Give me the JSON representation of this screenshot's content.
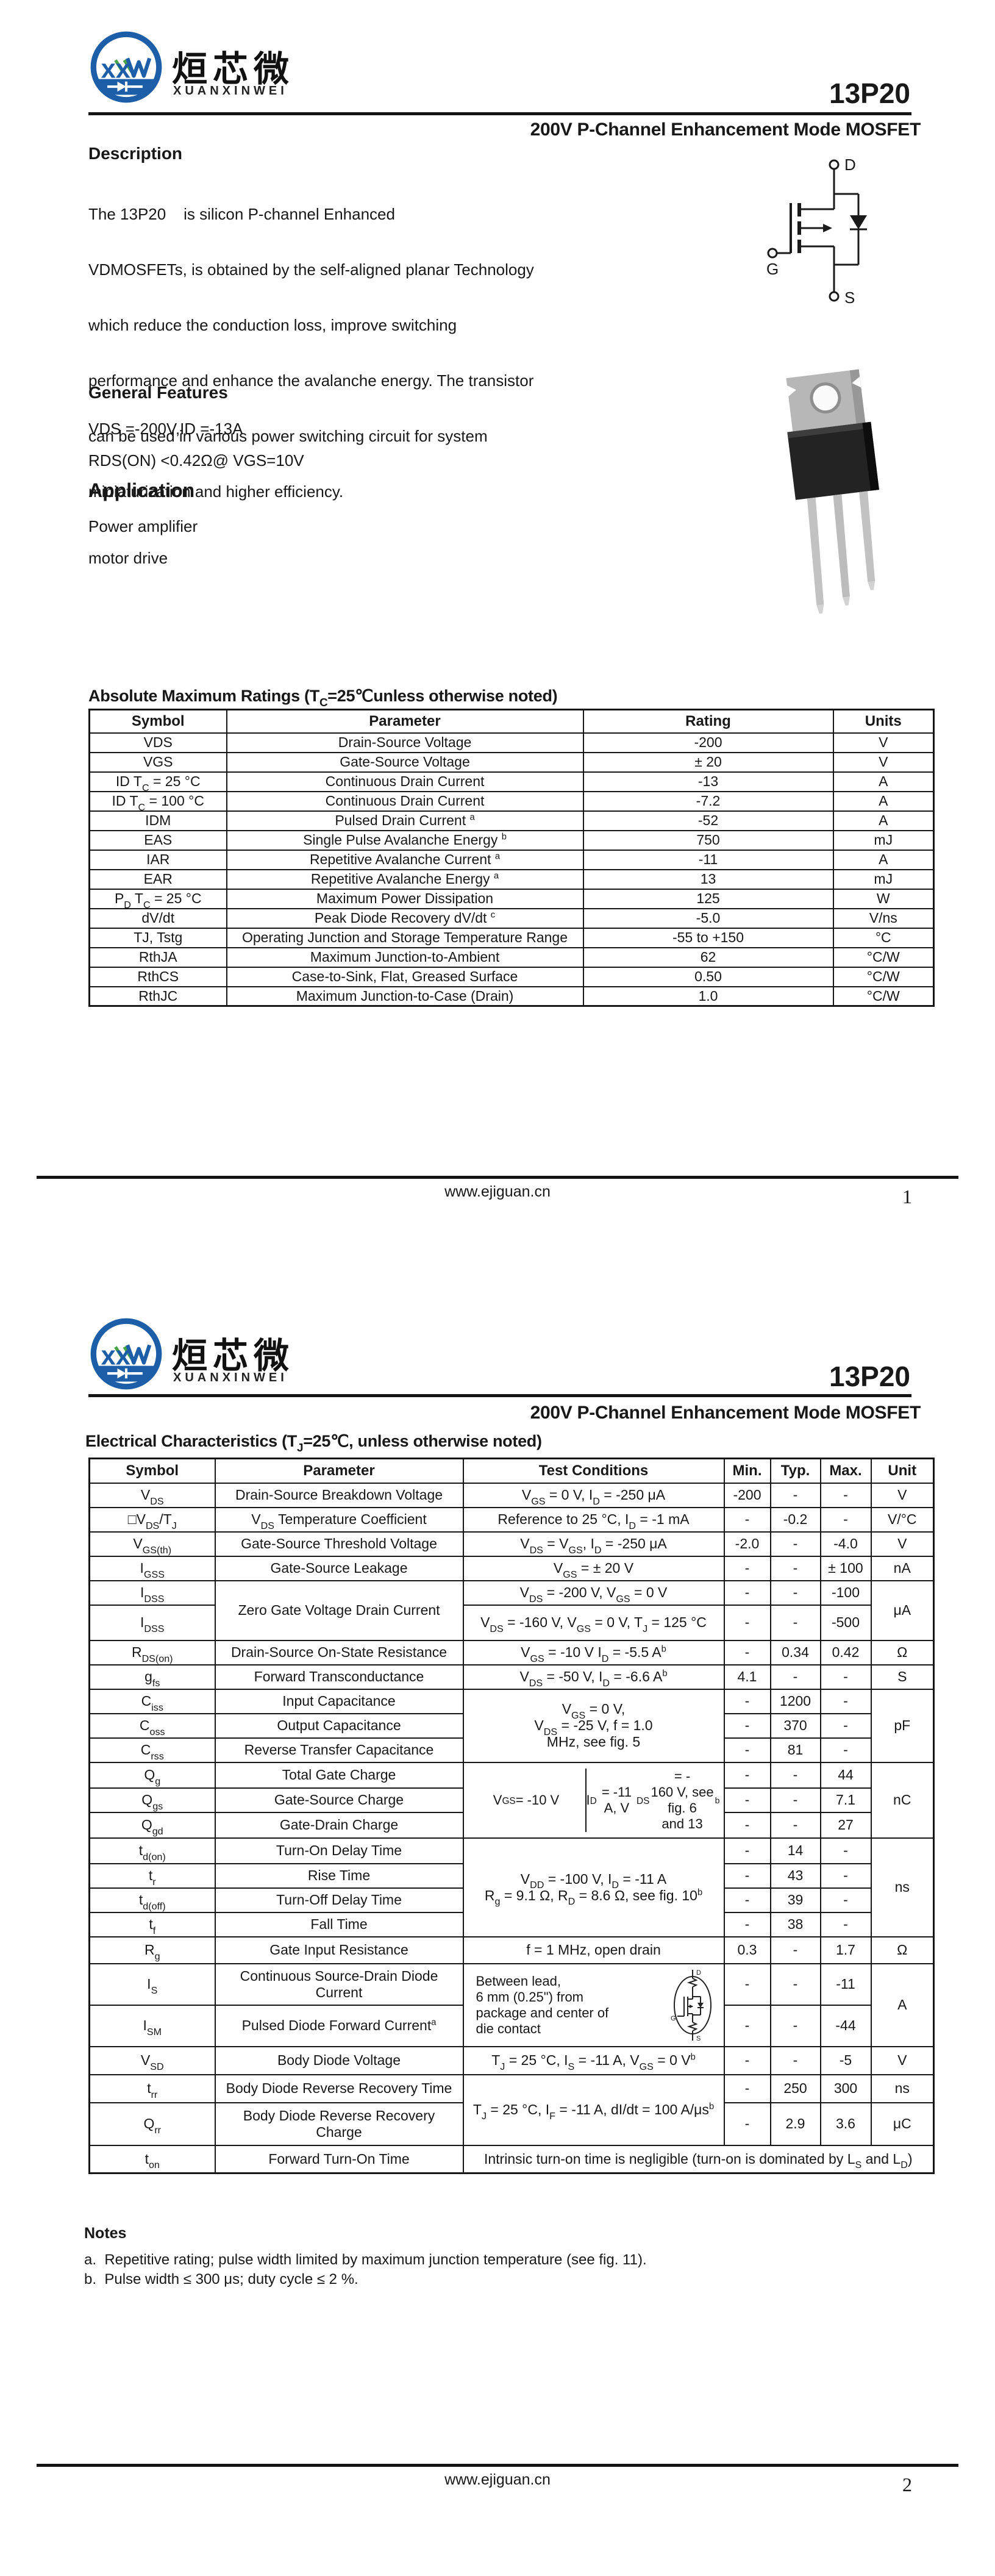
{
  "doc": {
    "brand": {
      "cn": "烜芯微",
      "en": "XUANXINWEI",
      "logo_blue": "#1c5ea8",
      "logo_green": "#46a447"
    },
    "part": "13P20",
    "subtitle": "200V P-Channel Enhancement Mode MOSFET",
    "terminals": {
      "d": "D",
      "g": "G",
      "s": "S"
    },
    "footer_url": "www.ejiguan.cn"
  },
  "page1": {
    "page_num": "1",
    "desc_title": "Description",
    "desc_lines": [
      "The 13P20    is silicon P-channel Enhanced",
      "VDMOSFETs, is obtained by the self-aligned planar Technology",
      "which reduce the conduction loss, improve switching",
      "performance and enhance the avalanche energy. The transistor",
      "can be used in various power switching circuit for system",
      "miniaturization and higher efficiency."
    ],
    "features_title": "General Features",
    "features": [
      "VDS =-200V,ID =-13A",
      "RDS(ON) <0.42Ω@ VGS=10V"
    ],
    "app_title": "Application",
    "apps": [
      "Power amplifier",
      "motor drive"
    ],
    "amr": {
      "title": "Absolute Maximum Ratings (T{s:C}=25℃unless otherwise noted)",
      "headers": [
        "Symbol",
        "Parameter",
        "Rating",
        "Units"
      ],
      "rows": [
        [
          "VDS",
          "Drain-Source Voltage",
          "-200",
          "V"
        ],
        [
          "VGS",
          "Gate-Source Voltage",
          "± 20",
          "V"
        ],
        [
          "ID T{s:C} = 25 °C",
          "Continuous Drain Current",
          "-13",
          "A"
        ],
        [
          "ID T{s:C} = 100 °C",
          "Continuous Drain Current",
          "-7.2",
          "A"
        ],
        [
          "IDM",
          "Pulsed Drain Current {p:a}",
          "-52",
          "A"
        ],
        [
          "EAS",
          "Single Pulse Avalanche Energy {p:b}",
          "750",
          "mJ"
        ],
        [
          "IAR",
          "Repetitive Avalanche Current {p:a}",
          "-11",
          "A"
        ],
        [
          "EAR",
          "Repetitive Avalanche Energy {p:a}",
          "13",
          "mJ"
        ],
        [
          "P{s:D} T{s:C} = 25 °C",
          "Maximum Power Dissipation",
          "125",
          "W"
        ],
        [
          "dV/dt",
          "Peak Diode Recovery dV/dt {p:c}",
          "-5.0",
          "V/ns"
        ],
        [
          "TJ, Tstg",
          "Operating Junction and Storage Temperature Range",
          "-55 to +150",
          "°C"
        ],
        [
          "RthJA",
          "Maximum Junction-to-Ambient",
          "62",
          "°C/W"
        ],
        [
          "RthCS",
          "Case-to-Sink, Flat, Greased Surface",
          "0.50",
          "°C/W"
        ],
        [
          "RthJC",
          "Maximum Junction-to-Case (Drain)",
          "1.0",
          "°C/W"
        ]
      ]
    }
  },
  "page2": {
    "page_num": "2",
    "ec_title": "Electrical Characteristics (T{s:J}=25℃, unless otherwise noted)",
    "headers": [
      "Symbol",
      "Parameter",
      "Test Conditions",
      "Min.",
      "Typ.",
      "Max.",
      "Unit"
    ],
    "rows": {
      "vds": {
        "sym": "V{s:DS}",
        "param": "Drain-Source Breakdown Voltage",
        "cond": "V{s:GS} = 0 V, I{s:D} = -250 μA",
        "min": "-200",
        "typ": "-",
        "max": "-",
        "unit": "V"
      },
      "dvds": {
        "sym": "□V{s:DS}/T{s:J}",
        "param": "V{s:DS} Temperature Coefficient",
        "cond": "Reference to 25 °C, I{s:D} = -1 mA",
        "min": "-",
        "typ": "-0.2",
        "max": "-",
        "unit": "V/°C"
      },
      "vgsth": {
        "sym": "V{s:GS(th)}",
        "param": "Gate-Source Threshold Voltage",
        "cond": "V{s:DS} = V{s:GS}, I{s:D} = -250 μA",
        "min": "-2.0",
        "typ": "-",
        "max": "-4.0",
        "unit": "V"
      },
      "igss": {
        "sym": "I{s:GSS}",
        "param": "Gate-Source Leakage",
        "cond": "V{s:GS} = ± 20 V",
        "min": "-",
        "typ": "-",
        "max": "± 100",
        "unit": "nA"
      },
      "idss": {
        "sym": "I{s:DSS}",
        "param": "Zero Gate Voltage Drain Current",
        "cond1": "V{s:DS} = -200 V, V{s:GS} = 0 V",
        "min1": "-",
        "typ1": "-",
        "max1": "-100",
        "cond2": "V{s:DS} = -160 V, V{s:GS} = 0 V, T{s:J} = 125 °C",
        "min2": "-",
        "typ2": "-",
        "max2": "-500",
        "unit": "μA"
      },
      "rds": {
        "sym": "R{s:DS(on)}",
        "param": "Drain-Source On-State Resistance",
        "cond": "V{s:GS} = -10 V I{s:D} = -5.5 A{p:b}",
        "min": "-",
        "typ": "0.34",
        "max": "0.42",
        "unit": "Ω"
      },
      "gfs": {
        "sym": "g{s:fs}",
        "param": "Forward Transconductance",
        "cond": "V{s:DS} = -50 V, I{s:D} = -6.6 A{p:b}",
        "min": "4.1",
        "typ": "-",
        "max": "-",
        "unit": "S"
      },
      "cap": {
        "cond": "V{s:GS} = 0 V,\nV{s:DS} = -25 V, f = 1.0\nMHz, see fig. 5",
        "unit": "pF",
        "ciss": {
          "sym": "C{s:iss}",
          "param": "Input Capacitance",
          "min": "-",
          "typ": "1200",
          "max": "-"
        },
        "coss": {
          "sym": "C{s:oss}",
          "param": "Output Capacitance",
          "min": "-",
          "typ": "370",
          "max": "-"
        },
        "crss": {
          "sym": "C{s:rss}",
          "param": "Reverse Transfer Capacitance",
          "min": "-",
          "typ": "81",
          "max": "-"
        }
      },
      "charge": {
        "cond_left": "V{s:GS} = -10 V",
        "cond_right": "I{s:D} = -11 A, V{s:DS} = -\n160 V, see fig. 6\nand 13{p:b}",
        "unit": "nC",
        "qg": {
          "sym": "Q{s:g}",
          "param": "Total Gate Charge",
          "min": "-",
          "typ": "-",
          "max": "44"
        },
        "qgs": {
          "sym": "Q{s:gs}",
          "param": "Gate-Source Charge",
          "min": "-",
          "typ": "-",
          "max": "7.1"
        },
        "qgd": {
          "sym": "Q{s:gd}",
          "param": "Gate-Drain Charge",
          "min": "-",
          "typ": "-",
          "max": "27"
        }
      },
      "sw": {
        "cond": "V{s:DD} = -100 V, I{s:D} = -11 A\nR{s:g} = 9.1 Ω, R{s:D} = 8.6 Ω, see fig. 10{p:b}",
        "unit": "ns",
        "tdon": {
          "sym": "t{s:d(on)}",
          "param": "Turn-On Delay Time",
          "min": "-",
          "typ": "14",
          "max": "-"
        },
        "tr": {
          "sym": "t{s:r}",
          "param": "Rise Time",
          "min": "-",
          "typ": "43",
          "max": "-"
        },
        "tdoff": {
          "sym": "t{s:d(off)}",
          "param": "Turn-Off Delay Time",
          "min": "-",
          "typ": "39",
          "max": "-"
        },
        "tf": {
          "sym": "t{s:f}",
          "param": "Fall Time",
          "min": "-",
          "typ": "38",
          "max": "-"
        }
      },
      "rg": {
        "sym": "R{s:g}",
        "param": "Gate Input Resistance",
        "cond": "f = 1 MHz, open drain",
        "min": "0.3",
        "typ": "-",
        "max": "1.7",
        "unit": "Ω"
      },
      "diode": {
        "cond": "Between lead,\n6 mm (0.25\") from\npackage and center of\ndie contact",
        "unit": "A",
        "is": {
          "sym": "I{s:S}",
          "param": "Continuous Source-Drain Diode\nCurrent",
          "min": "-",
          "typ": "-",
          "max": "-11"
        },
        "ism": {
          "sym": "I{s:SM}",
          "param": "Pulsed Diode Forward Current{p:a}",
          "min": "-",
          "typ": "-",
          "max": "-44"
        }
      },
      "vsd": {
        "sym": "V{s:SD}",
        "param": "Body Diode Voltage",
        "cond": "T{s:J} = 25 °C, I{s:S} = -11 A, V{s:GS} = 0 V{p:b}",
        "min": "-",
        "typ": "-",
        "max": "-5",
        "unit": "V"
      },
      "rr": {
        "cond": "T{s:J} = 25 °C, I{s:F} = -11 A, dI/dt = 100 A/μs{p:b}",
        "trr": {
          "sym": "t{s:rr}",
          "param": "Body Diode Reverse Recovery Time",
          "min": "-",
          "typ": "250",
          "max": "300",
          "unit": "ns"
        },
        "qrr": {
          "sym": "Q{s:rr}",
          "param": "Body Diode Reverse Recovery\nCharge",
          "min": "-",
          "typ": "2.9",
          "max": "3.6",
          "unit": "μC"
        }
      },
      "ton": {
        "sym": "t{s:on}",
        "param": "Forward Turn-On Time",
        "cond": "Intrinsic turn-on time is negligible (turn-on is dominated by L{s:S} and L{s:D})"
      }
    },
    "notes_title": "Notes",
    "notes": [
      "a.  Repetitive rating; pulse width limited by maximum junction temperature (see fig. 11).",
      "b.  Pulse width ≤ 300 μs; duty cycle ≤ 2 %."
    ]
  }
}
